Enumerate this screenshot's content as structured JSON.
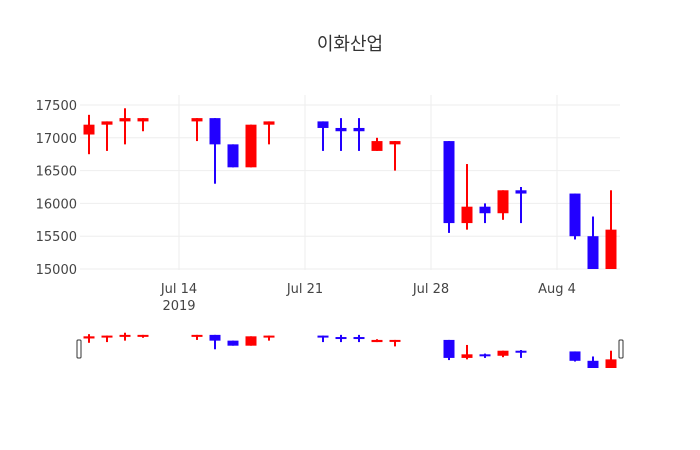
{
  "title": "이화산업",
  "chart_data": {
    "type": "candlestick",
    "title": "이화산업",
    "xlabel": "",
    "ylabel": "",
    "ylim": [
      14980,
      17550
    ],
    "yticks": [
      15000,
      15500,
      16000,
      16500,
      17000,
      17500
    ],
    "xticks": [
      {
        "date": "2019-07-14",
        "label": "Jul 14",
        "sublabel": "2019"
      },
      {
        "date": "2019-07-21",
        "label": "Jul 21",
        "sublabel": ""
      },
      {
        "date": "2019-07-28",
        "label": "Jul 28",
        "sublabel": ""
      },
      {
        "date": "2019-08-04",
        "label": "Aug 4",
        "sublabel": ""
      }
    ],
    "grid": true,
    "increasing_color": "#ff0000",
    "decreasing_color": "#2200ff",
    "rangeslider": true,
    "candles": [
      {
        "date": "2019-07-09",
        "open": 17050,
        "high": 17350,
        "low": 16750,
        "close": 17200
      },
      {
        "date": "2019-07-10",
        "open": 17200,
        "high": 17250,
        "low": 16800,
        "close": 17250
      },
      {
        "date": "2019-07-11",
        "open": 17250,
        "high": 17450,
        "low": 16900,
        "close": 17300
      },
      {
        "date": "2019-07-12",
        "open": 17250,
        "high": 17300,
        "low": 17100,
        "close": 17300
      },
      {
        "date": "2019-07-15",
        "open": 17250,
        "high": 17300,
        "low": 16950,
        "close": 17300
      },
      {
        "date": "2019-07-16",
        "open": 17300,
        "high": 17300,
        "low": 16300,
        "close": 16900
      },
      {
        "date": "2019-07-17",
        "open": 16900,
        "high": 16900,
        "low": 16550,
        "close": 16550
      },
      {
        "date": "2019-07-18",
        "open": 16550,
        "high": 17200,
        "low": 16550,
        "close": 17200
      },
      {
        "date": "2019-07-19",
        "open": 17200,
        "high": 17250,
        "low": 16900,
        "close": 17250
      },
      {
        "date": "2019-07-22",
        "open": 17250,
        "high": 17250,
        "low": 16800,
        "close": 17150
      },
      {
        "date": "2019-07-23",
        "open": 17150,
        "high": 17300,
        "low": 16800,
        "close": 17100
      },
      {
        "date": "2019-07-24",
        "open": 17150,
        "high": 17300,
        "low": 16800,
        "close": 17100
      },
      {
        "date": "2019-07-25",
        "open": 16800,
        "high": 17000,
        "low": 16800,
        "close": 16950
      },
      {
        "date": "2019-07-26",
        "open": 16900,
        "high": 16950,
        "low": 16500,
        "close": 16950
      },
      {
        "date": "2019-07-29",
        "open": 16950,
        "high": 16950,
        "low": 15550,
        "close": 15700
      },
      {
        "date": "2019-07-30",
        "open": 15700,
        "high": 16600,
        "low": 15600,
        "close": 15950
      },
      {
        "date": "2019-07-31",
        "open": 15950,
        "high": 16000,
        "low": 15700,
        "close": 15850
      },
      {
        "date": "2019-08-01",
        "open": 15850,
        "high": 16200,
        "low": 15750,
        "close": 16200
      },
      {
        "date": "2019-08-02",
        "open": 16200,
        "high": 16250,
        "low": 15700,
        "close": 16150
      },
      {
        "date": "2019-08-05",
        "open": 16150,
        "high": 16150,
        "low": 15450,
        "close": 15500
      },
      {
        "date": "2019-08-06",
        "open": 15500,
        "high": 15800,
        "low": 15000,
        "close": 15000
      },
      {
        "date": "2019-08-07",
        "open": 15000,
        "high": 16200,
        "low": 15000,
        "close": 15600
      }
    ]
  }
}
